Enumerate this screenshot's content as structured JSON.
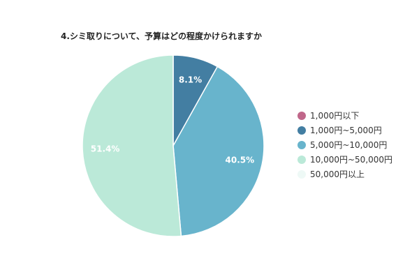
{
  "chart_data": {
    "type": "pie",
    "title": "4.シミ取りについて、予算はどの程度かけられますか",
    "legend_position": "right",
    "categories": [
      "1,000円以下",
      "1,000円~5,000円",
      "5,000円~10,000円",
      "10,000円~50,000円",
      "50,000円以上"
    ],
    "values": [
      0,
      8.1,
      40.5,
      51.4,
      0
    ],
    "labels": [
      "",
      "8.1%",
      "40.5%",
      "51.4%",
      ""
    ],
    "colors": [
      "#c0678a",
      "#437ea2",
      "#68b4cc",
      "#bbe9d8",
      "#eef9f6"
    ]
  }
}
